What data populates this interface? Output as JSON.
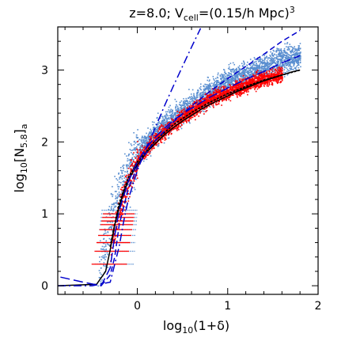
{
  "chart_data": {
    "type": "scatter",
    "title": {
      "prefix": "z=8.0; V",
      "sub": "cell",
      "mid": "=(0.15/h Mpc)",
      "sup": "3"
    },
    "xlabel": {
      "base": "log",
      "sub": "10",
      "rest": "(1+δ)"
    },
    "ylabel": {
      "base": "log",
      "sub": "10",
      "rest": "[N",
      "sub2": "5.8",
      "rest2": "]",
      "sub3": "a"
    },
    "xlim": [
      -0.88,
      2.0
    ],
    "ylim": [
      -0.12,
      3.6
    ],
    "x_ticks": [
      0,
      1,
      2
    ],
    "y_ticks": [
      0,
      1,
      2,
      3
    ],
    "x_tick_labels": [
      "0",
      "1",
      "2"
    ],
    "y_tick_labels": [
      "0",
      "1",
      "2",
      "3"
    ],
    "grid": false,
    "legend": "none",
    "colors": {
      "scatter_blue": "#5a8fd0",
      "scatter_red": "#ff0000",
      "blue_curves": "#0000cc",
      "black_curve": "#000000"
    },
    "series": [
      {
        "kind": "scatter_cloud",
        "color": "blue",
        "description_points": {
          "x": [
            -0.45,
            -0.3,
            -0.2,
            -0.1,
            0.0,
            0.2,
            0.5,
            0.8,
            1.0,
            1.3,
            1.6,
            1.8
          ],
          "y": [
            0.0,
            0.9,
            1.3,
            1.6,
            1.85,
            2.15,
            2.45,
            2.7,
            2.85,
            3.0,
            3.15,
            3.2
          ]
        }
      },
      {
        "kind": "scatter_cloud",
        "color": "red",
        "description_points": {
          "x": [
            -0.3,
            -0.2,
            -0.1,
            0.0,
            0.2,
            0.5,
            0.8,
            1.0,
            1.3,
            1.6
          ],
          "y": [
            0.5,
            1.1,
            1.45,
            1.75,
            2.05,
            2.35,
            2.6,
            2.7,
            2.85,
            2.95
          ]
        }
      },
      {
        "kind": "line",
        "style": "solid",
        "color": "black",
        "x": [
          -0.88,
          -0.45,
          -0.35,
          -0.3,
          -0.25,
          -0.2,
          -0.15,
          -0.1,
          -0.05,
          0.0,
          0.1,
          0.2,
          0.3,
          0.4,
          0.5,
          0.6,
          0.7,
          0.8,
          0.9,
          1.0,
          1.1,
          1.2,
          1.3,
          1.4,
          1.5,
          1.6,
          1.7,
          1.8
        ],
        "y": [
          0.0,
          0.02,
          0.2,
          0.5,
          0.85,
          1.1,
          1.3,
          1.45,
          1.58,
          1.68,
          1.85,
          1.98,
          2.1,
          2.2,
          2.29,
          2.37,
          2.45,
          2.52,
          2.58,
          2.64,
          2.7,
          2.75,
          2.8,
          2.85,
          2.89,
          2.93,
          2.97,
          3.0
        ]
      },
      {
        "kind": "line",
        "style": "dotted",
        "color": "black",
        "x": [
          -0.3,
          -0.2,
          -0.1,
          0.0,
          0.2,
          0.4,
          0.6,
          0.8,
          1.0,
          1.2,
          1.4,
          1.6,
          1.8
        ],
        "y": [
          0.55,
          1.15,
          1.5,
          1.72,
          2.02,
          2.24,
          2.41,
          2.55,
          2.67,
          2.77,
          2.86,
          2.93,
          3.0
        ]
      },
      {
        "kind": "line",
        "style": "long-dash",
        "color": "blue",
        "x": [
          -0.85,
          -0.6,
          -0.4,
          -0.3,
          -0.25,
          -0.2,
          -0.1,
          0.0,
          0.1,
          0.2,
          0.3,
          0.4,
          0.5,
          0.6,
          0.8,
          1.0,
          1.2,
          1.4,
          1.6,
          1.8
        ],
        "y": [
          0.12,
          0.05,
          0.0,
          0.25,
          0.7,
          1.05,
          1.45,
          1.72,
          1.92,
          2.07,
          2.19,
          2.3,
          2.39,
          2.47,
          2.62,
          2.75,
          2.87,
          2.98,
          3.1,
          3.2
        ]
      },
      {
        "kind": "line",
        "style": "short-dash",
        "color": "blue",
        "x": [
          -0.4,
          -0.3,
          -0.25,
          -0.2,
          -0.1,
          0.0,
          0.1,
          0.2,
          0.4,
          0.6,
          0.8,
          1.0,
          1.2,
          1.4,
          1.6,
          1.8
        ],
        "y": [
          0.0,
          0.15,
          0.4,
          0.85,
          1.35,
          1.65,
          1.85,
          2.02,
          2.28,
          2.5,
          2.7,
          2.88,
          3.05,
          3.22,
          3.4,
          3.55
        ]
      },
      {
        "kind": "line",
        "style": "dash-dot",
        "color": "blue",
        "x": [
          -0.88,
          -0.5,
          -0.3,
          -0.2,
          -0.15,
          -0.1,
          0.0,
          0.1,
          0.2,
          0.3,
          0.4,
          0.5,
          0.6,
          0.7
        ],
        "y": [
          0.0,
          0.0,
          0.05,
          0.55,
          0.9,
          1.2,
          1.6,
          1.92,
          2.2,
          2.5,
          2.78,
          3.05,
          3.32,
          3.58
        ]
      }
    ]
  }
}
